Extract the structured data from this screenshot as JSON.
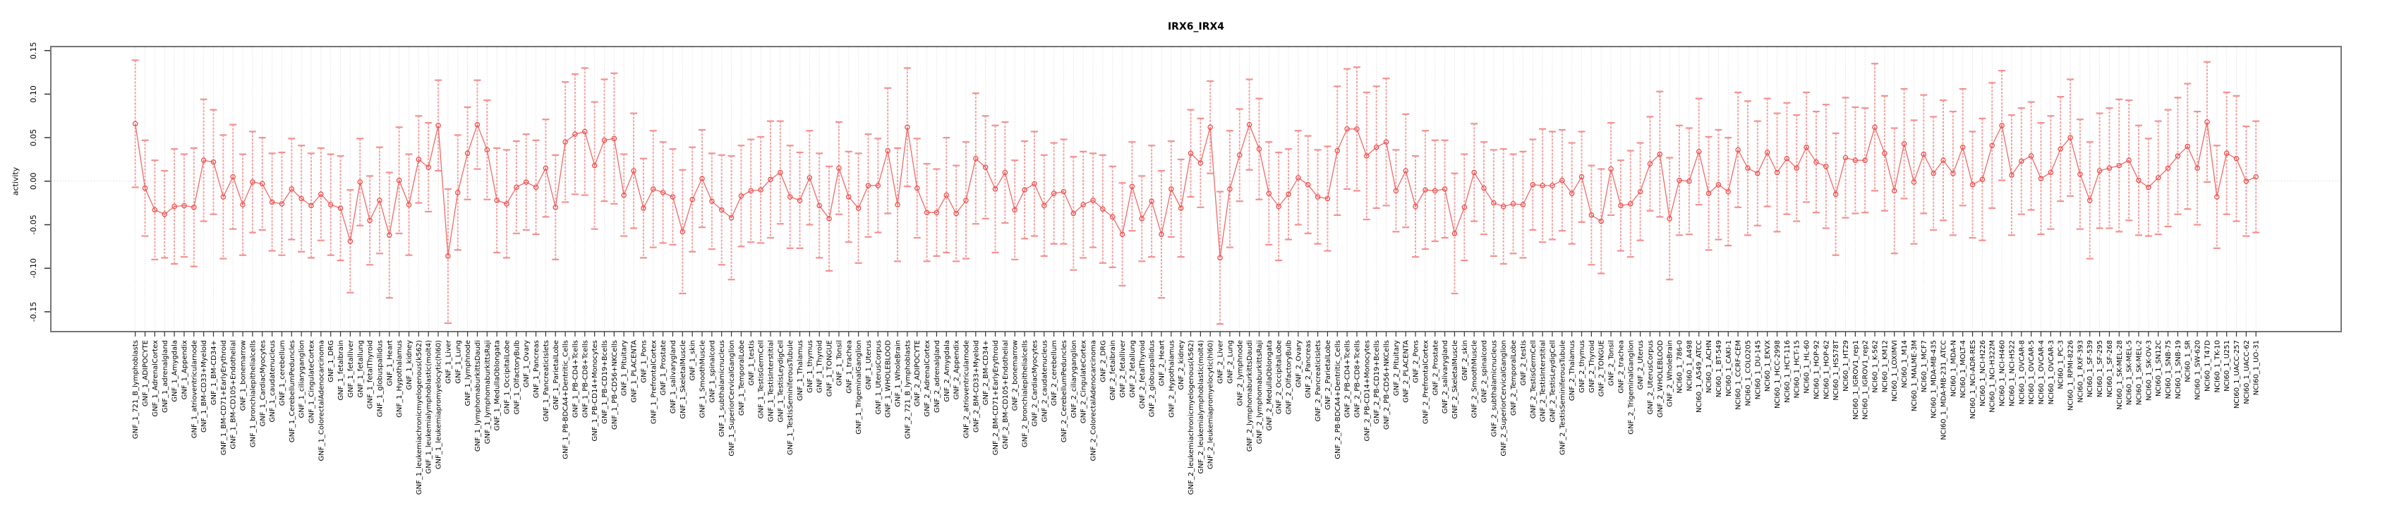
{
  "chart_data": {
    "type": "line",
    "subtype": "error-bar-profile",
    "title": "IRX6_IRX4",
    "xlabel": "",
    "ylabel": "activity",
    "ylim": [
      -0.15,
      0.15
    ],
    "yticks": [
      -0.15,
      -0.1,
      -0.05,
      0.0,
      0.05,
      0.1,
      0.15
    ],
    "ytick_labels": [
      "-0.15",
      "-0.10",
      "-0.05",
      "0.00",
      "0.05",
      "0.10",
      "0.15"
    ],
    "grid": "vertical dotted gridline per category; dotted horizontal line at 0",
    "legend_position": "none",
    "marker": "open-circle",
    "colors": {
      "error_bar": "#f5a3a1",
      "error_bar_cap": "#f4918f",
      "series_line": "#f06a68",
      "point_stroke": "#ee4d4b",
      "gridline": "#d9d9d9",
      "zero_line": "#d4d4d4",
      "box_border": "#757575",
      "text": "#000000"
    },
    "categories": [
      "GNF_1_721_B_lymphoblasts",
      "GNF_1_ADIPOCYTE",
      "GNF_1_AdrenalCortex",
      "GNF_1_adrenalgland",
      "GNF_1_Amygdala",
      "GNF_1_Appendix",
      "GNF_1_atrioventricularnode",
      "GNF_1_BM-CD33+Myeloid",
      "GNF_1_BM-CD34+",
      "GNF_1_BM-CD71+EarlyErythroid",
      "GNF_1_BM-CD105+Endothelial",
      "GNF_1_bonemarrow",
      "GNF_1_bronchialepithelialcells",
      "GNF_1_CardiacMyocytes",
      "GNF_1_caudatenucleus",
      "GNF_1_cerebellum",
      "GNF_1_CerebellumPeduncles",
      "GNF_1_ciliaryganglion",
      "GNF_1_CingulateCortex",
      "GNF_1_ColorectalAdenocarcinoma",
      "GNF_1_DRG",
      "GNF_1_fetalbrain",
      "GNF_1_fetalliver",
      "GNF_1_fetallung",
      "GNF_1_fetalThyroid",
      "GNF_1_globuspallidus",
      "GNF_1_Heart",
      "GNF_1_Hypothalamus",
      "GNF_1_kidney",
      "GNF_1_leukemiachronicmyelogenous(k562)",
      "GNF_1_leukemialymphoblastic(molt4)",
      "GNF_1_leukemiapromyelocytic(hl60)",
      "GNF_1_Liver",
      "GNF_1_Lung",
      "GNF_1_lymphnode",
      "GNF_1_lymphomaburkittsDaudi",
      "GNF_1_lymphomaburkittsRaji",
      "GNF_1_MedullaOblongata",
      "GNF_1_OccipitalLobe",
      "GNF_1_OlfactoryBulb",
      "GNF_1_Ovary",
      "GNF_1_Pancreas",
      "GNF_1_PancreaticIslets",
      "GNF_1_ParietalLobe",
      "GNF_1_PB-BDCA4+Dentritic_Cells",
      "GNF_1_PB-CD4+Tcells",
      "GNF_1_PB-CD8+Tcells",
      "GNF_1_PB-CD14+Monocytes",
      "GNF_1_PB-CD19+Bcells",
      "GNF_1_PB-CD56+NKCells",
      "GNF_1_Pituitary",
      "GNF_1_PLACENTA",
      "GNF_1_Pons",
      "GNF_1_PrefrontalCortex",
      "GNF_1_Prostate",
      "GNF_1_salivarygland",
      "GNF_1_SkeletalMuscle",
      "GNF_1_skin",
      "GNF_1_SmoothMuscle",
      "GNF_1_spinalcord",
      "GNF_1_subthalamicnucleus",
      "GNF_1_SuperiorCervicalGanglion",
      "GNF_1_TemporalLobe",
      "GNF_1_testis",
      "GNF_1_TestisGermCell",
      "GNF_1_TestisInterstitial",
      "GNF_1_TestisLeydigCell",
      "GNF_1_TestisSeminiferousTubule",
      "GNF_1_Thalamus",
      "GNF_1_thymus",
      "GNF_1_Thyroid",
      "GNF_1_TONGUE",
      "GNF_1_Tonsil",
      "GNF_1_trachea",
      "GNF_1_TrigeminalGanglion",
      "GNF_1_Uterus",
      "GNF_1_UterusCorpus",
      "GNF_1_WHOLEBLOOD",
      "GNF_1_WholeBrain",
      "GNF_2_721_B_lymphoblasts",
      "GNF_2_ADIPOCYTE",
      "GNF_2_AdrenalCortex",
      "GNF_2_adrenalgland",
      "GNF_2_Amygdala",
      "GNF_2_Appendix",
      "GNF_2_atrioventricularnode",
      "GNF_2_BM-CD33+Myeloid",
      "GNF_2_BM-CD34+",
      "GNF_2_BM-CD71+EarlyErythroid",
      "GNF_2_BM-CD105+Endothelial",
      "GNF_2_bonemarrow",
      "GNF_2_bronchialepithelialcells",
      "GNF_2_CardiacMyocytes",
      "GNF_2_caudatenucleus",
      "GNF_2_cerebellum",
      "GNF_2_CerebellumPeduncles",
      "GNF_2_ciliaryganglion",
      "GNF_2_CingulateCortex",
      "GNF_2_ColorectalAdenocarcinoma",
      "GNF_2_DRG",
      "GNF_2_fetalbrain",
      "GNF_2_fetalliver",
      "GNF_2_fetallung",
      "GNF_2_fetalThyroid",
      "GNF_2_globuspallidus",
      "GNF_2_Heart",
      "GNF_2_Hypothalamus",
      "GNF_2_kidney",
      "GNF_2_leukemiachronicmyelogenous(k562)",
      "GNF_2_leukemialymphoblastic(molt4)",
      "GNF_2_leukemiapromyelocytic(hl60)",
      "GNF_2_Liver",
      "GNF_2_Lung",
      "GNF_2_lymphnode",
      "GNF_2_lymphomaburkittsDaudi",
      "GNF_2_lymphomaburkittsRaji",
      "GNF_2_MedullaOblongata",
      "GNF_2_OccipitalLobe",
      "GNF_2_OlfactoryBulb",
      "GNF_2_Ovary",
      "GNF_2_Pancreas",
      "GNF_2_PancreaticIslets",
      "GNF_2_ParietalLobe",
      "GNF_2_PB-BDCA4+Dentritic_Cells",
      "GNF_2_PB-CD4+Tcells",
      "GNF_2_PB-CD8+Tcells",
      "GNF_2_PB-CD14+Monocytes",
      "GNF_2_PB-CD19+Bcells",
      "GNF_2_PB-CD56+NKCells",
      "GNF_2_Pituitary",
      "GNF_2_PLACENTA",
      "GNF_2_Pons",
      "GNF_2_PrefrontalCortex",
      "GNF_2_Prostate",
      "GNF_2_salivarygland",
      "GNF_2_SkeletalMuscle",
      "GNF_2_skin",
      "GNF_2_SmoothMuscle",
      "GNF_2_spinalcord",
      "GNF_2_subthalamicnucleus",
      "GNF_2_SuperiorCervicalGanglion",
      "GNF_2_TemporalLobe",
      "GNF_2_testis",
      "GNF_2_TestisGermCell",
      "GNF_2_TestisInterstitial",
      "GNF_2_TestisLeydigCell",
      "GNF_2_TestisSeminiferousTubule",
      "GNF_2_Thalamus",
      "GNF_2_thymus",
      "GNF_2_Thyroid",
      "GNF_2_TONGUE",
      "GNF_2_Tonsil",
      "GNF_2_trachea",
      "GNF_2_TrigeminalGanglion",
      "GNF_2_Uterus",
      "GNF_2_UterusCorpus",
      "GNF_2_WHOLEBLOOD",
      "GNF_2_WholeBrain",
      "NCI60_1_786-0",
      "NCI60_1_A498",
      "NCI60_1_A549_ATCC",
      "NCI60_1_ACHN",
      "NCI60_1_BT-549",
      "NCI60_1_CAKI-1",
      "NCI60_1_CCRF-CEM",
      "NCI60_1_COLO205",
      "NCI60_1_DU-145",
      "NCI60_1_EKVX",
      "NCI60_1_HCC-2998",
      "NCI60_1_HCT-116",
      "NCI60_1_HCT-15",
      "NCI60_1_HL-60",
      "NCI60_1_HOP-92",
      "NCI60_1_HOP-62",
      "NCI60_1_HS578T",
      "NCI60_1_HT29",
      "NCI60_1_IGROV1_rep1",
      "NCI60_1_IGROV1_rep2",
      "NCI60_1_K-562",
      "NCI60_1_KM12",
      "NCI60_1_LOXIMVI",
      "NCI60_1_M14",
      "NCI60_1_MALME-3M",
      "NCI60_1_MCF7",
      "NCI60_1_MDA-MB-435",
      "NCI60_1_MDA-MB-231_ATCC",
      "NCI60_1_MDA-N",
      "NCI60_1_MOLT-4",
      "NCI60_1_NCI-ADR-RES",
      "NCI60_1_NCI-H226",
      "NCI60_1_NCI-H322M",
      "NCI60_1_NCI-H460",
      "NCI60_1_NCI-H522",
      "NCI60_1_OVCAR-8",
      "NCI60_1_OVCAR-5",
      "NCI60_1_OVCAR-4",
      "NCI60_1_OVCAR-3",
      "NCI60_1_PC-3",
      "NCI60_1_RPMI-8226",
      "NCI60_1_RXF-393",
      "NCI60_1_SF-539",
      "NCI60_1_SF-295",
      "NCI60_1_SF-268",
      "NCI60_1_SK-MEL-28",
      "NCI60_1_SK-MEL-5",
      "NCI60_1_SK-MEL-2",
      "NCI60_1_SK-OV-3",
      "NCI60_1_SN12C",
      "NCI60_1_SNB-75",
      "NCI60_1_SNB-19",
      "NCI60_1_SR",
      "NCI60_1_SW-620",
      "NCI60_1_T47D",
      "NCI60_1_TK-10",
      "NCI60_1_U251",
      "NCI60_1_UACC-257",
      "NCI60_1_UACC-62",
      "NCI60_1_UO-31"
    ],
    "series": [
      {
        "name": "activity",
        "values": [
          0.066,
          -0.008,
          -0.033,
          -0.038,
          -0.029,
          -0.028,
          -0.03,
          0.024,
          0.022,
          -0.018,
          0.005,
          -0.027,
          -0.001,
          -0.003,
          -0.024,
          -0.026,
          -0.009,
          -0.02,
          -0.028,
          -0.015,
          -0.027,
          -0.031,
          -0.069,
          -0.001,
          -0.045,
          -0.022,
          -0.062,
          0.001,
          -0.027,
          0.025,
          0.016,
          0.064,
          -0.086,
          -0.013,
          0.032,
          0.065,
          0.036,
          -0.022,
          -0.026,
          -0.007,
          -0.001,
          -0.007,
          0.015,
          -0.03,
          0.045,
          0.054,
          0.057,
          0.018,
          0.047,
          0.049,
          -0.016,
          0.012,
          -0.031,
          -0.009,
          -0.013,
          -0.018,
          -0.058,
          -0.021,
          0.003,
          -0.023,
          -0.033,
          -0.042,
          -0.017,
          -0.011,
          -0.01,
          0.002,
          0.01,
          -0.018,
          -0.022,
          0.004,
          -0.028,
          -0.043,
          0.015,
          -0.018,
          -0.031,
          -0.005,
          -0.005,
          0.035,
          -0.027,
          0.062,
          -0.008,
          -0.036,
          -0.036,
          -0.016,
          -0.037,
          -0.022,
          0.026,
          0.016,
          -0.009,
          0.01,
          -0.033,
          -0.01,
          -0.003,
          -0.028,
          -0.014,
          -0.012,
          -0.037,
          -0.027,
          -0.022,
          -0.032,
          -0.041,
          -0.061,
          -0.006,
          -0.043,
          -0.023,
          -0.061,
          -0.009,
          -0.031,
          0.032,
          0.021,
          0.062,
          -0.088,
          -0.009,
          0.03,
          0.065,
          0.037,
          -0.014,
          -0.029,
          -0.015,
          0.004,
          -0.004,
          -0.018,
          -0.02,
          0.035,
          0.06,
          0.06,
          0.029,
          0.039,
          0.045,
          -0.011,
          0.012,
          -0.029,
          -0.01,
          -0.011,
          -0.009,
          -0.06,
          -0.03,
          0.01,
          -0.008,
          -0.025,
          -0.029,
          -0.026,
          -0.027,
          -0.004,
          -0.005,
          -0.005,
          0.001,
          -0.014,
          0.005,
          -0.039,
          -0.046,
          0.014,
          -0.028,
          -0.026,
          -0.012,
          0.02,
          0.031,
          -0.043,
          0.001,
          0.0,
          0.034,
          -0.014,
          -0.004,
          -0.012,
          0.036,
          0.015,
          0.009,
          0.033,
          0.01,
          0.026,
          0.015,
          0.039,
          0.022,
          0.017,
          -0.015,
          0.027,
          0.024,
          0.024,
          0.062,
          0.032,
          -0.011,
          0.043,
          -0.001,
          0.031,
          0.009,
          0.024,
          0.009,
          0.039,
          -0.004,
          0.002,
          0.041,
          0.064,
          0.007,
          0.023,
          0.029,
          0.003,
          0.01,
          0.037,
          0.05,
          0.008,
          -0.022,
          0.012,
          0.015,
          0.018,
          0.024,
          0.001,
          -0.007,
          0.004,
          0.015,
          0.029,
          0.04,
          0.015,
          0.068,
          -0.018,
          0.032,
          0.026,
          0.0,
          0.005
        ],
        "errors": [
          0.073,
          0.055,
          0.057,
          0.05,
          0.066,
          0.059,
          0.068,
          0.07,
          0.06,
          0.071,
          0.06,
          0.058,
          0.058,
          0.053,
          0.056,
          0.059,
          0.058,
          0.061,
          0.06,
          0.053,
          0.058,
          0.06,
          0.059,
          0.05,
          0.051,
          0.061,
          0.072,
          0.061,
          0.058,
          0.05,
          0.051,
          0.052,
          0.077,
          0.066,
          0.053,
          0.051,
          0.057,
          0.06,
          0.062,
          0.053,
          0.055,
          0.054,
          0.056,
          0.06,
          0.069,
          0.069,
          0.073,
          0.073,
          0.07,
          0.075,
          0.047,
          0.066,
          0.057,
          0.067,
          0.058,
          0.055,
          0.071,
          0.06,
          0.056,
          0.055,
          0.063,
          0.071,
          0.058,
          0.059,
          0.061,
          0.067,
          0.059,
          0.059,
          0.055,
          0.054,
          0.06,
          0.06,
          0.053,
          0.052,
          0.063,
          0.059,
          0.054,
          0.072,
          0.065,
          0.068,
          0.057,
          0.056,
          0.05,
          0.066,
          0.055,
          0.067,
          0.075,
          0.059,
          0.073,
          0.058,
          0.057,
          0.056,
          0.06,
          0.058,
          0.058,
          0.06,
          0.065,
          0.061,
          0.054,
          0.062,
          0.058,
          0.059,
          0.051,
          0.049,
          0.064,
          0.073,
          0.055,
          0.056,
          0.05,
          0.051,
          0.053,
          0.076,
          0.067,
          0.053,
          0.052,
          0.058,
          0.059,
          0.062,
          0.052,
          0.054,
          0.056,
          0.054,
          0.06,
          0.074,
          0.069,
          0.071,
          0.073,
          0.07,
          0.073,
          0.047,
          0.065,
          0.058,
          0.068,
          0.058,
          0.056,
          0.069,
          0.061,
          0.056,
          0.053,
          0.061,
          0.066,
          0.057,
          0.061,
          0.052,
          0.065,
          0.062,
          0.058,
          0.058,
          0.052,
          0.057,
          0.06,
          0.053,
          0.052,
          0.061,
          0.056,
          0.054,
          0.072,
          0.07,
          0.063,
          0.061,
          0.061,
          0.065,
          0.063,
          0.062,
          0.066,
          0.077,
          0.06,
          0.062,
          0.068,
          0.064,
          0.061,
          0.063,
          0.058,
          0.071,
          0.07,
          0.069,
          0.061,
          0.06,
          0.073,
          0.066,
          0.072,
          0.063,
          0.071,
          0.068,
          0.065,
          0.069,
          0.071,
          0.067,
          0.061,
          0.07,
          0.072,
          0.063,
          0.069,
          0.061,
          0.062,
          0.064,
          0.065,
          0.06,
          0.067,
          0.063,
          0.067,
          0.066,
          0.069,
          0.076,
          0.069,
          0.063,
          0.056,
          0.065,
          0.067,
          0.067,
          0.072,
          0.065,
          0.069,
          0.059,
          0.07,
          0.072,
          0.063,
          0.064
        ]
      }
    ]
  }
}
